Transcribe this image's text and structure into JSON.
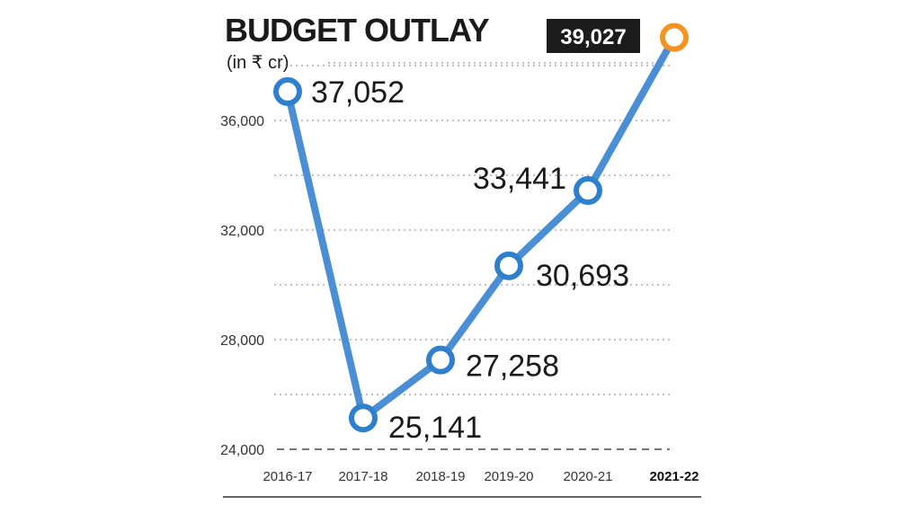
{
  "chart_data": {
    "type": "line",
    "title": "BUDGET OUTLAY",
    "subtitle": "(in ₹ cr)",
    "categories": [
      "2016-17",
      "2017-18",
      "2018-19",
      "2019-20",
      "2020-21",
      "2021-22"
    ],
    "series": [
      {
        "values": [
          37052,
          25141,
          27258,
          30693,
          33441,
          39027
        ]
      }
    ],
    "data_labels": [
      "37,052",
      "25,141",
      "27,258",
      "30,693",
      "33,441",
      "39,027"
    ],
    "highlight_index": 5,
    "ylim": [
      24000,
      39500
    ],
    "yticks": [
      24000,
      28000,
      32000,
      36000
    ],
    "ytick_labels": [
      "24,000",
      "28,000",
      "32,000",
      "36,000"
    ],
    "grid": true,
    "colors": {
      "line": "#4a8fd6",
      "marker_stroke": "#2f80cc",
      "highlight_marker": "#f39322",
      "highlight_label_bg": "#1c1c1c",
      "grid": "#9a9a9a"
    }
  }
}
